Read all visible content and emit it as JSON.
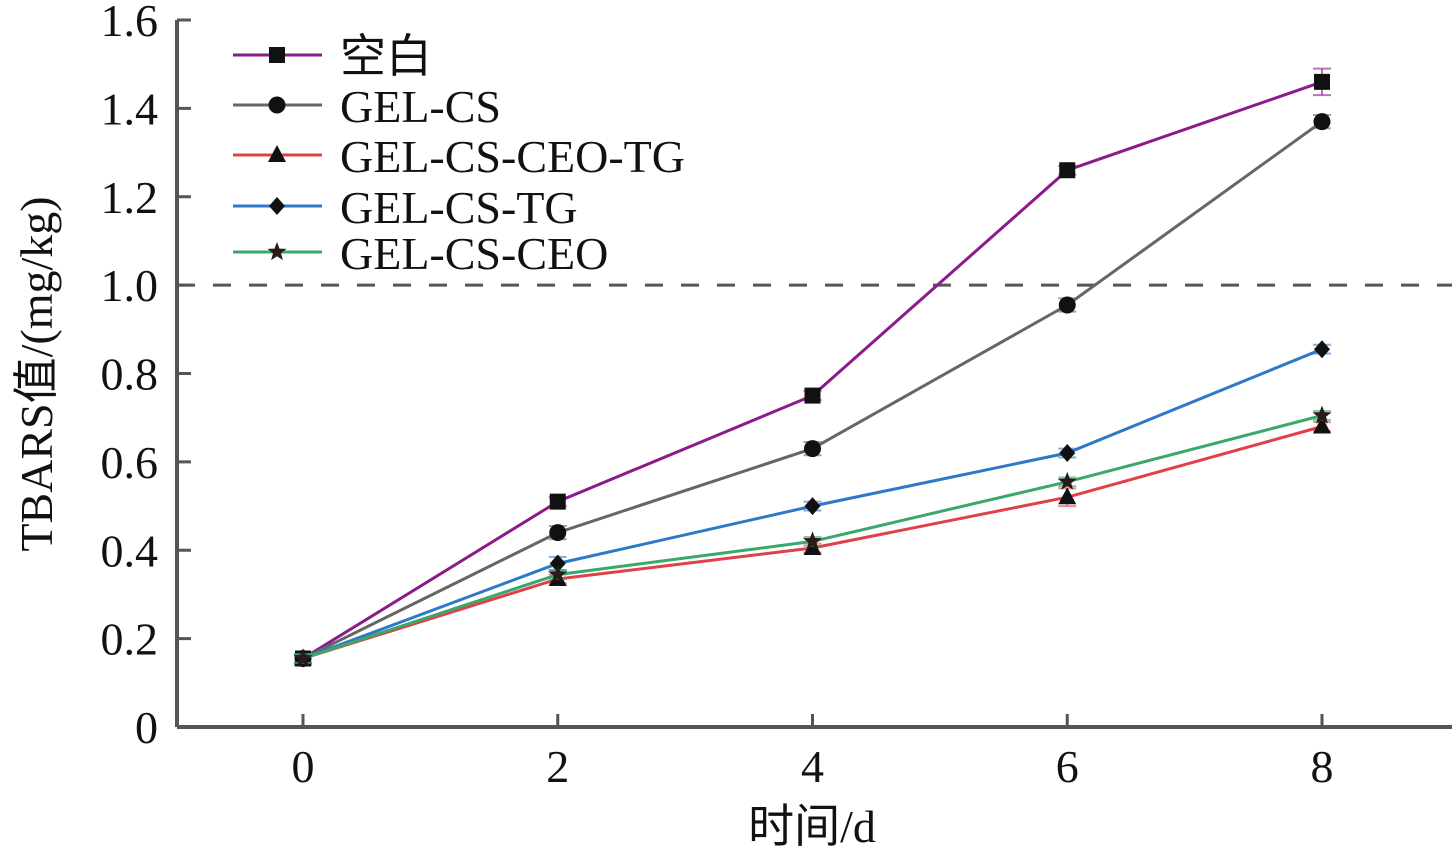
{
  "chart_data": {
    "type": "line",
    "title": "",
    "xlabel": "时间/d",
    "ylabel": "TBARS值/(mg/kg)",
    "x": [
      0,
      2,
      4,
      6,
      8
    ],
    "xticks": [
      "0",
      "2",
      "4",
      "6",
      "8"
    ],
    "yticks": [
      "0",
      "0.2",
      "0.4",
      "0.6",
      "0.8",
      "1.0",
      "1.2",
      "1.4",
      "1.6"
    ],
    "ytick_values": [
      0,
      0.2,
      0.4,
      0.6,
      0.8,
      1.0,
      1.2,
      1.4,
      1.6
    ],
    "xlim": [
      -1,
      9
    ],
    "ylim": [
      0,
      1.6
    ],
    "grid": false,
    "legend_position": "top-left",
    "reference_line": {
      "y": 1.0,
      "style": "dashed",
      "color": "#555555"
    },
    "series": [
      {
        "name": "空白",
        "marker": "square",
        "color": "#8B1A8B",
        "values": [
          0.155,
          0.51,
          0.75,
          1.26,
          1.46
        ],
        "errors": [
          0.01,
          0.01,
          0.01,
          0.01,
          0.03
        ]
      },
      {
        "name": "GEL-CS",
        "marker": "circle",
        "color": "#666666",
        "values": [
          0.155,
          0.44,
          0.63,
          0.955,
          1.37
        ],
        "errors": [
          0.01,
          0.015,
          0.015,
          0.015,
          0.015
        ]
      },
      {
        "name": "GEL-CS-CEO-TG",
        "marker": "triangle",
        "color": "#E0404A",
        "values": [
          0.155,
          0.335,
          0.405,
          0.52,
          0.68
        ],
        "errors": [
          0.01,
          0.01,
          0.01,
          0.02,
          0.01
        ]
      },
      {
        "name": "GEL-CS-TG",
        "marker": "diamond",
        "color": "#2E78C8",
        "values": [
          0.155,
          0.37,
          0.5,
          0.62,
          0.855
        ],
        "errors": [
          0.01,
          0.015,
          0.01,
          0.01,
          0.01
        ]
      },
      {
        "name": "GEL-CS-CEO",
        "marker": "star",
        "color": "#3AA86A",
        "values": [
          0.155,
          0.345,
          0.42,
          0.555,
          0.705
        ],
        "errors": [
          0.01,
          0.01,
          0.01,
          0.01,
          0.01
        ]
      }
    ]
  }
}
